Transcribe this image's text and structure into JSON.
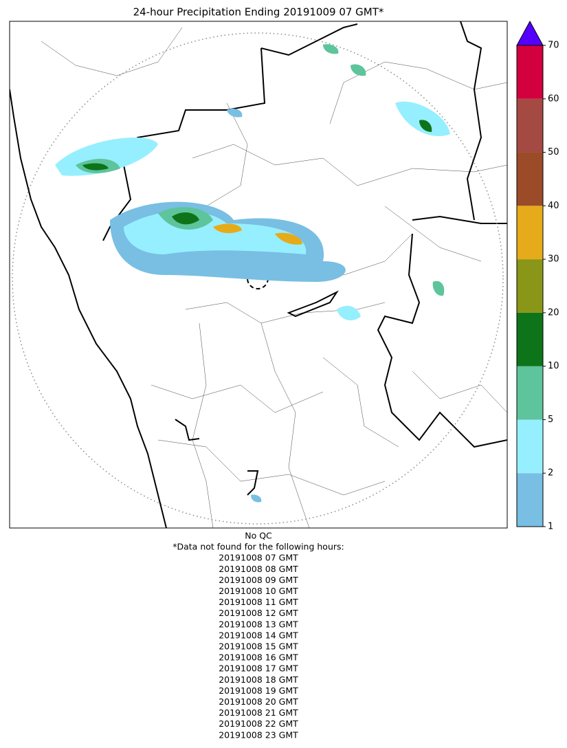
{
  "title": "24-hour Precipitation Ending 20191009 07 GMT*",
  "colorbar": {
    "bounds": [
      1,
      2,
      5,
      10,
      20,
      30,
      40,
      50,
      60,
      70
    ],
    "colors": [
      "#78bfe3",
      "#96efff",
      "#5ec49c",
      "#0e7419",
      "#8a9618",
      "#e6ab1a",
      "#9c4b28",
      "#a54a43",
      "#d3003f"
    ],
    "extend_color": "#5500ff"
  },
  "notes": [
    "No QC",
    "*Data not found for the following hours:",
    "20191008 07 GMT",
    "20191008 08 GMT",
    "20191008 09 GMT",
    "20191008 10 GMT",
    "20191008 11 GMT",
    "20191008 12 GMT",
    "20191008 13 GMT",
    "20191008 14 GMT",
    "20191008 15 GMT",
    "20191008 16 GMT",
    "20191008 17 GMT",
    "20191008 18 GMT",
    "20191008 19 GMT",
    "20191008 20 GMT",
    "20191008 21 GMT",
    "20191008 22 GMT",
    "20191008 23 GMT"
  ]
}
